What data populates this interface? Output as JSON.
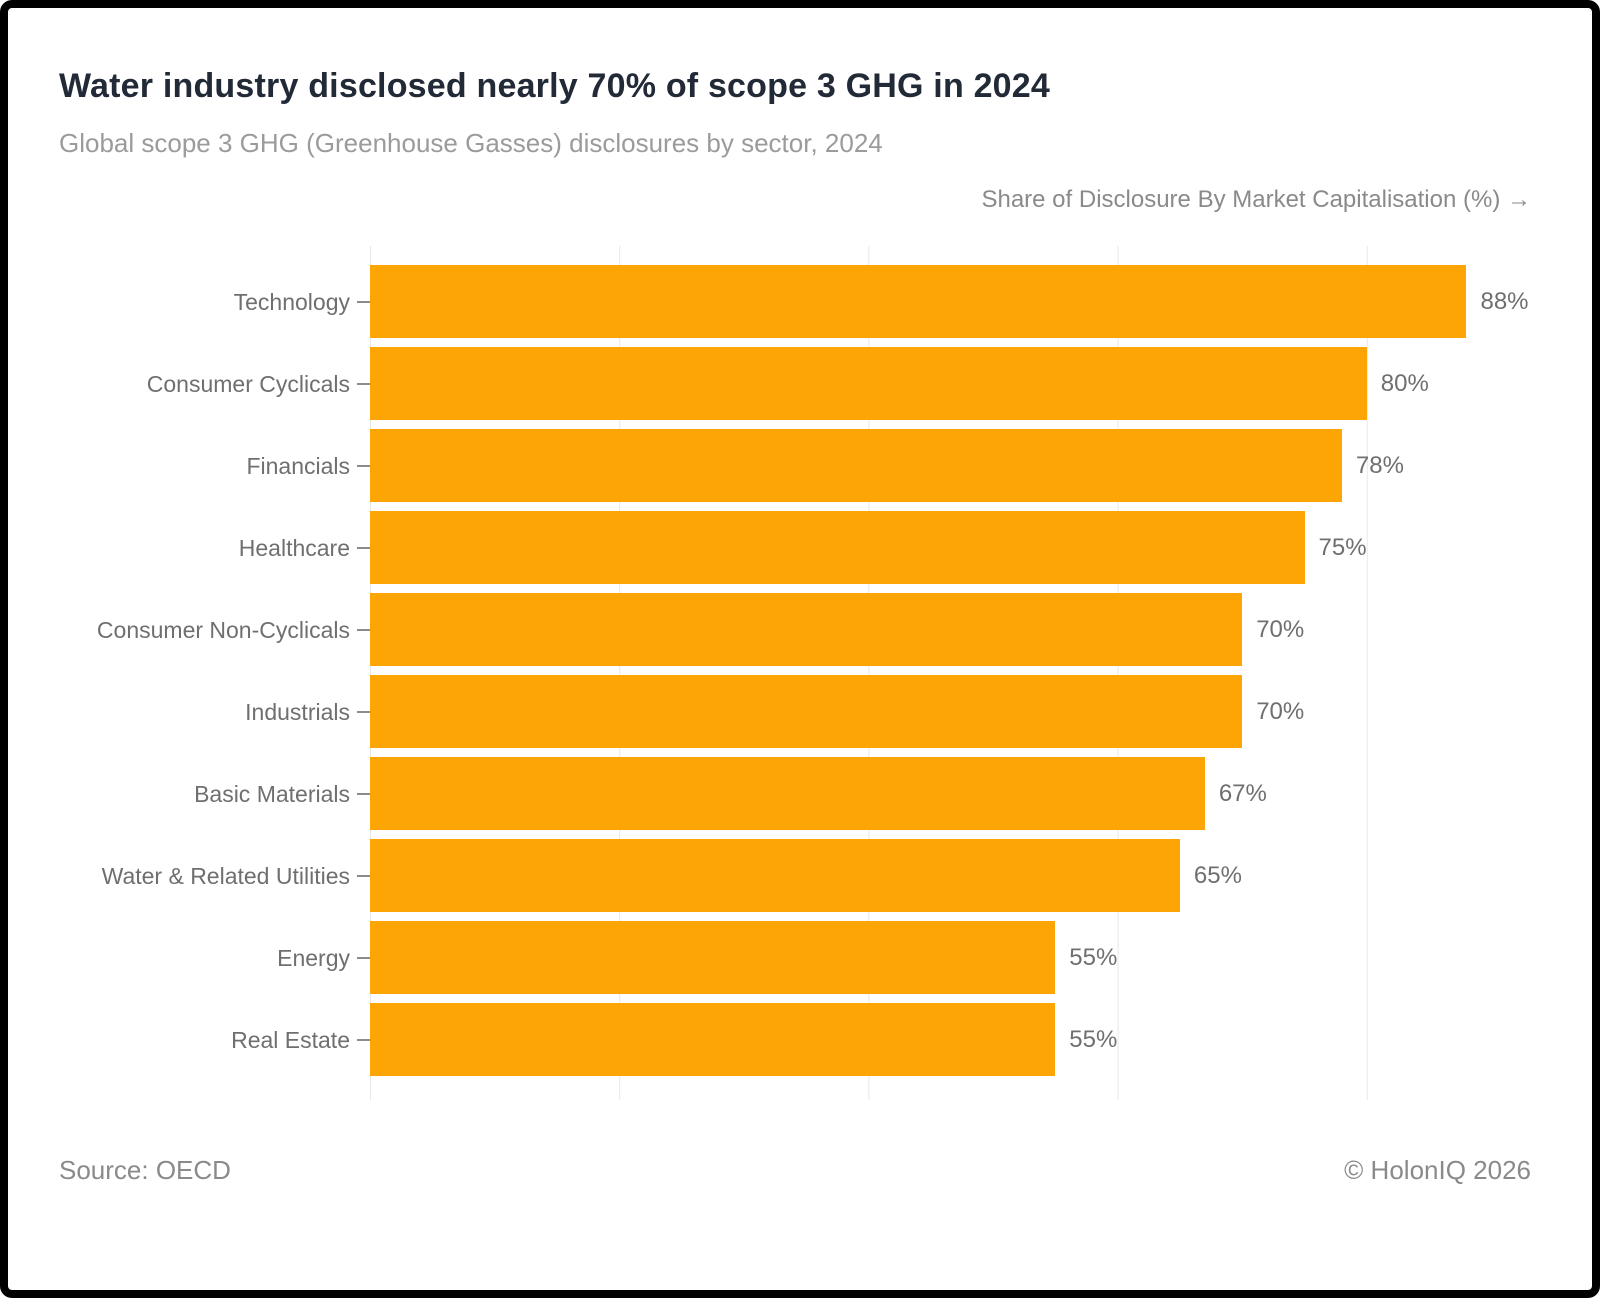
{
  "header": {
    "title": "Water industry disclosed nearly 70% of scope 3 GHG in 2024",
    "subtitle": "Global scope 3 GHG (Greenhouse Gasses) disclosures by sector, 2024"
  },
  "chart_data": {
    "type": "bar",
    "orientation": "horizontal",
    "title": "Water industry disclosed nearly 70% of scope 3 GHG in 2024",
    "subtitle": "Global scope 3 GHG (Greenhouse Gasses) disclosures by sector, 2024",
    "xlabel": "Share of Disclosure By Market Capitalisation (%) →",
    "ylabel": "",
    "categories": [
      "Technology",
      "Consumer Cyclicals",
      "Financials",
      "Healthcare",
      "Consumer Non-Cyclicals",
      "Industrials",
      "Basic Materials",
      "Water & Related Utilities",
      "Energy",
      "Real Estate"
    ],
    "values": [
      88,
      80,
      78,
      75,
      70,
      70,
      67,
      65,
      55,
      55
    ],
    "value_labels": [
      "88%",
      "80%",
      "78%",
      "75%",
      "70%",
      "70%",
      "67%",
      "65%",
      "55%",
      "55%"
    ],
    "xlim": [
      0,
      93.9
    ],
    "grid_interval": 20,
    "gridline_values": [
      0,
      20,
      40,
      60,
      80
    ],
    "grid": true,
    "legend": "none",
    "bar_color": "#FCA505",
    "gridline_color": "#E8E8E8"
  },
  "footer": {
    "source": "Source: OECD",
    "copyright": "© HolonIQ 2026"
  }
}
